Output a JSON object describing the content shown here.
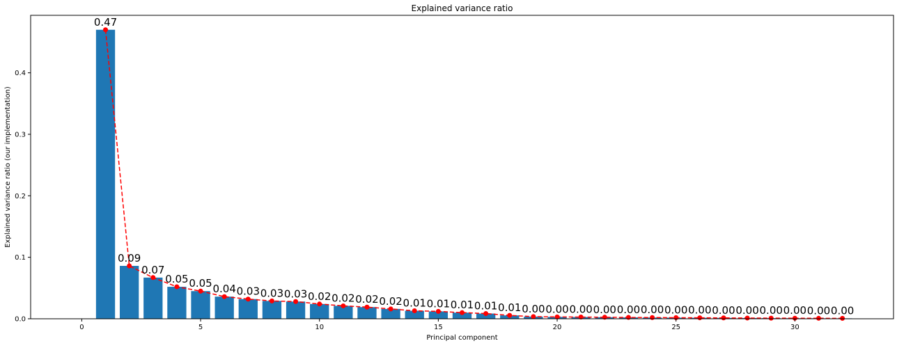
{
  "chart_data": {
    "type": "bar",
    "title": "Explained variance ratio",
    "xlabel": "Principal component",
    "ylabel": "Explained variance ratio (our implementation)",
    "xlim": [
      -2.15,
      34.15
    ],
    "ylim": [
      0,
      0.4935
    ],
    "xticks": [
      0,
      5,
      10,
      15,
      20,
      25,
      30
    ],
    "yticks": [
      0.0,
      0.1,
      0.2,
      0.3,
      0.4
    ],
    "xtick_labels": [
      "0",
      "5",
      "10",
      "15",
      "20",
      "25",
      "30"
    ],
    "ytick_labels": [
      "0.0",
      "0.1",
      "0.2",
      "0.3",
      "0.4"
    ],
    "grid": false,
    "x": [
      1,
      2,
      3,
      4,
      5,
      6,
      7,
      8,
      9,
      10,
      11,
      12,
      13,
      14,
      15,
      16,
      17,
      18,
      19,
      20,
      21,
      22,
      23,
      24,
      25,
      26,
      27,
      28,
      29,
      30,
      31,
      32
    ],
    "values": [
      0.47,
      0.086,
      0.067,
      0.052,
      0.045,
      0.036,
      0.032,
      0.029,
      0.028,
      0.024,
      0.021,
      0.019,
      0.016,
      0.013,
      0.012,
      0.01,
      0.0085,
      0.0055,
      0.0035,
      0.003,
      0.0028,
      0.0025,
      0.0022,
      0.002,
      0.0018,
      0.0016,
      0.0014,
      0.0012,
      0.001,
      0.0009,
      0.0008,
      0.0007
    ],
    "data_labels": [
      "0.47",
      "0.09",
      "0.07",
      "0.05",
      "0.05",
      "0.04",
      "0.03",
      "0.03",
      "0.03",
      "0.02",
      "0.02",
      "0.02",
      "0.02",
      "0.01",
      "0.01",
      "0.01",
      "0.01",
      "0.01",
      "0.00",
      "0.00",
      "0.00",
      "0.00",
      "0.00",
      "0.00",
      "0.00",
      "0.00",
      "0.00",
      "0.00",
      "0.00",
      "0.00",
      "0.00",
      "0.00"
    ],
    "bar_color": "#1f77b4",
    "line_color": "#ff0000",
    "line_style": "dashed",
    "marker": "circle"
  }
}
